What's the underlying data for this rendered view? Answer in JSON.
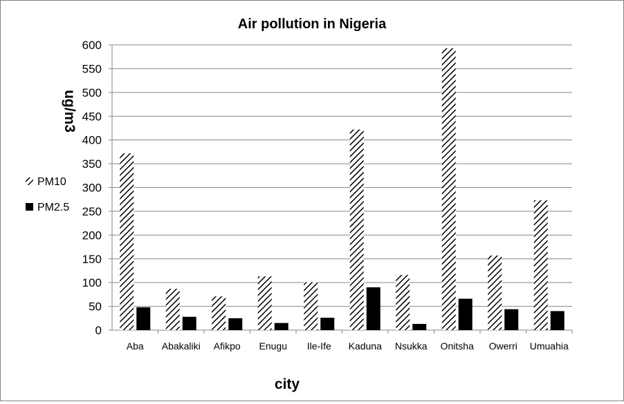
{
  "chart_data": {
    "type": "bar",
    "title": "Air pollution  in Nigeria",
    "xlabel": "city",
    "ylabel": "ug/m3",
    "ylim": [
      0,
      600
    ],
    "yticks": [
      0,
      50,
      100,
      150,
      200,
      250,
      300,
      350,
      400,
      450,
      500,
      550,
      600
    ],
    "grid": true,
    "legend_position": "left",
    "categories": [
      "Aba",
      "Abakaliki",
      "Afikpo",
      "Enugu",
      "Ile-Ife",
      "Kaduna",
      "Nsukka",
      "Onitsha",
      "Owerri",
      "Umuahia"
    ],
    "series": [
      {
        "name": "PM10",
        "pattern": "diagonal-hatch",
        "color": "#000000",
        "values": [
          372,
          87,
          71,
          113,
          101,
          422,
          116,
          593,
          157,
          273
        ]
      },
      {
        "name": "PM2.5",
        "pattern": "solid",
        "color": "#000000",
        "values": [
          48,
          28,
          25,
          15,
          26,
          90,
          13,
          66,
          44,
          40
        ]
      }
    ]
  }
}
